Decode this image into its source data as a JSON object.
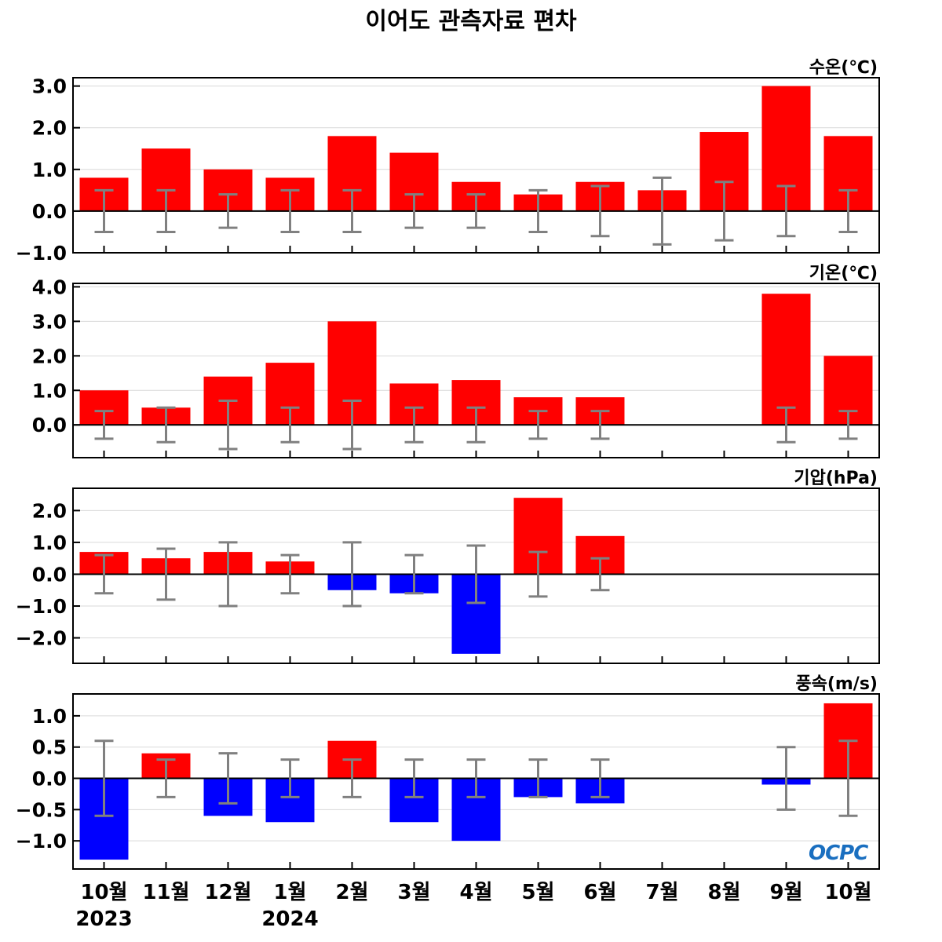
{
  "title": "이어도 관측자료 편차",
  "logo": "OCPC",
  "colors": {
    "positive": "#ff0000",
    "negative": "#0000ff",
    "error_bar": "#808080",
    "grid": "#d9d9d9"
  },
  "chart_data": [
    {
      "type": "bar",
      "label": "수온(℃)",
      "categories": [
        "10월",
        "11월",
        "12월",
        "1월",
        "2월",
        "3월",
        "4월",
        "5월",
        "6월",
        "7월",
        "8월",
        "9월",
        "10월"
      ],
      "values": [
        0.8,
        1.5,
        1.0,
        0.8,
        1.8,
        1.4,
        0.7,
        0.4,
        0.7,
        0.5,
        1.9,
        3.0,
        1.8
      ],
      "error_range": [
        [
          -0.5,
          0.5
        ],
        [
          -0.5,
          0.5
        ],
        [
          -0.4,
          0.4
        ],
        [
          -0.5,
          0.5
        ],
        [
          -0.5,
          0.5
        ],
        [
          -0.4,
          0.4
        ],
        [
          -0.4,
          0.4
        ],
        [
          -0.5,
          0.5
        ],
        [
          -0.6,
          0.6
        ],
        [
          -0.8,
          0.8
        ],
        [
          -0.7,
          0.7
        ],
        [
          -0.6,
          0.6
        ],
        [
          -0.5,
          0.5
        ]
      ],
      "ylim": [
        -1.0,
        3.2
      ],
      "yticks": [
        3.0,
        2.0,
        1.0,
        0.0,
        -1.0
      ],
      "ytick_labels": [
        "3.0",
        "2.0",
        "1.0",
        "0.0",
        "−1.0"
      ]
    },
    {
      "type": "bar",
      "label": "기온(℃)",
      "categories": [
        "10월",
        "11월",
        "12월",
        "1월",
        "2월",
        "3월",
        "4월",
        "5월",
        "6월",
        "7월",
        "8월",
        "9월",
        "10월"
      ],
      "values": [
        1.0,
        0.5,
        1.4,
        1.8,
        3.0,
        1.2,
        1.3,
        0.8,
        0.8,
        null,
        null,
        3.8,
        2.0
      ],
      "error_range": [
        [
          -0.4,
          0.4
        ],
        [
          -0.5,
          0.5
        ],
        [
          -0.7,
          0.7
        ],
        [
          -0.5,
          0.5
        ],
        [
          -0.7,
          0.7
        ],
        [
          -0.5,
          0.5
        ],
        [
          -0.5,
          0.5
        ],
        [
          -0.4,
          0.4
        ],
        [
          -0.4,
          0.4
        ],
        null,
        null,
        [
          -0.5,
          0.5
        ],
        [
          -0.4,
          0.4
        ]
      ],
      "ylim": [
        -0.95,
        4.1
      ],
      "yticks": [
        4.0,
        3.0,
        2.0,
        1.0,
        0.0
      ],
      "ytick_labels": [
        "4.0",
        "3.0",
        "2.0",
        "1.0",
        "0.0"
      ]
    },
    {
      "type": "bar",
      "label": "기압(hPa)",
      "categories": [
        "10월",
        "11월",
        "12월",
        "1월",
        "2월",
        "3월",
        "4월",
        "5월",
        "6월",
        "7월",
        "8월",
        "9월",
        "10월"
      ],
      "values": [
        0.7,
        0.5,
        0.7,
        0.4,
        -0.5,
        -0.6,
        -2.5,
        2.4,
        1.2,
        null,
        null,
        null,
        null
      ],
      "error_range": [
        [
          -0.6,
          0.6
        ],
        [
          -0.8,
          0.8
        ],
        [
          -1.0,
          1.0
        ],
        [
          -0.6,
          0.6
        ],
        [
          -1.0,
          1.0
        ],
        [
          -0.6,
          0.6
        ],
        [
          -0.9,
          0.9
        ],
        [
          -0.7,
          0.7
        ],
        [
          -0.5,
          0.5
        ],
        null,
        null,
        null,
        null
      ],
      "ylim": [
        -2.8,
        2.7
      ],
      "yticks": [
        2.0,
        1.0,
        0.0,
        -1.0,
        -2.0
      ],
      "ytick_labels": [
        "2.0",
        "1.0",
        "0.0",
        "−1.0",
        "−2.0"
      ]
    },
    {
      "type": "bar",
      "label": "풍속(m/s)",
      "categories": [
        "10월",
        "11월",
        "12월",
        "1월",
        "2월",
        "3월",
        "4월",
        "5월",
        "6월",
        "7월",
        "8월",
        "9월",
        "10월"
      ],
      "values": [
        -1.3,
        0.4,
        -0.6,
        -0.7,
        0.6,
        -0.7,
        -1.0,
        -0.3,
        -0.4,
        null,
        null,
        -0.1,
        1.2
      ],
      "error_range": [
        [
          -0.6,
          0.6
        ],
        [
          -0.3,
          0.3
        ],
        [
          -0.4,
          0.4
        ],
        [
          -0.3,
          0.3
        ],
        [
          -0.3,
          0.3
        ],
        [
          -0.3,
          0.3
        ],
        [
          -0.3,
          0.3
        ],
        [
          -0.3,
          0.3
        ],
        [
          -0.3,
          0.3
        ],
        null,
        null,
        [
          -0.5,
          0.5
        ],
        [
          -0.6,
          0.6
        ]
      ],
      "ylim": [
        -1.45,
        1.35
      ],
      "yticks": [
        1.0,
        0.5,
        0.0,
        -0.5,
        -1.0
      ],
      "ytick_labels": [
        "1.0",
        "0.5",
        "0.0",
        "−0.5",
        "−1.0"
      ]
    }
  ],
  "x_axis": {
    "months": [
      "10월",
      "11월",
      "12월",
      "1월",
      "2월",
      "3월",
      "4월",
      "5월",
      "6월",
      "7월",
      "8월",
      "9월",
      "10월"
    ],
    "years": [
      {
        "label": "2023",
        "index": 0
      },
      {
        "label": "2024",
        "index": 3
      }
    ]
  }
}
